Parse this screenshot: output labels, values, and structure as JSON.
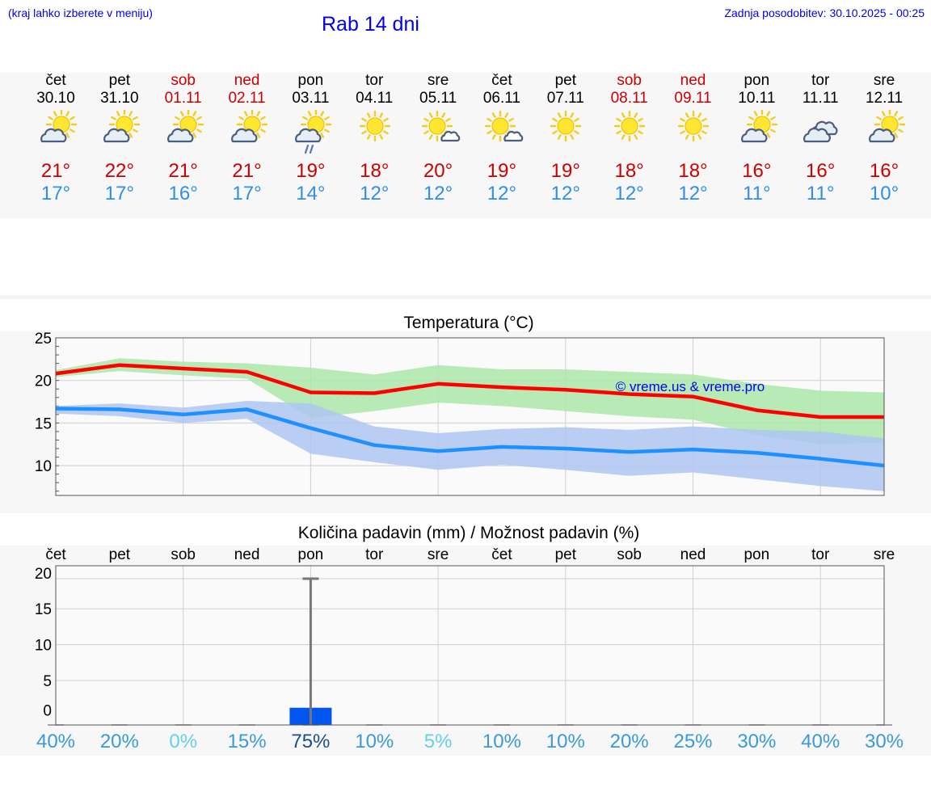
{
  "header": {
    "hint": "(kraj lahko izberete v meniju)",
    "title": "Rab 14 dni",
    "updated": "Zadnja posodobitev: 30.10.2025 - 00:25"
  },
  "colors": {
    "weekend": "#cc0000",
    "tmax": "#cc0000",
    "tmin": "#2f8fe8",
    "max_line": "#ff0000",
    "min_line": "#1e90ff",
    "max_band": "#aae6a8",
    "min_band": "#aec5f2",
    "precip_bar": "#0055ee",
    "error_bar": "#777777"
  },
  "days": [
    {
      "name": "čet",
      "date": "30.10",
      "weekend": false,
      "icon": "partly-cloudy-icon",
      "tmax": "21°",
      "tmin": "17°"
    },
    {
      "name": "pet",
      "date": "31.10",
      "weekend": false,
      "icon": "partly-cloudy-icon",
      "tmax": "22°",
      "tmin": "17°"
    },
    {
      "name": "sob",
      "date": "01.11",
      "weekend": true,
      "icon": "partly-cloudy-icon",
      "tmax": "21°",
      "tmin": "16°"
    },
    {
      "name": "ned",
      "date": "02.11",
      "weekend": true,
      "icon": "partly-cloudy-icon",
      "tmax": "21°",
      "tmin": "17°"
    },
    {
      "name": "pon",
      "date": "03.11",
      "weekend": false,
      "icon": "rain-showers-icon",
      "tmax": "19°",
      "tmin": "14°"
    },
    {
      "name": "tor",
      "date": "04.11",
      "weekend": false,
      "icon": "sunny-icon",
      "tmax": "18°",
      "tmin": "12°"
    },
    {
      "name": "sre",
      "date": "05.11",
      "weekend": false,
      "icon": "mostly-sunny-icon",
      "tmax": "20°",
      "tmin": "12°"
    },
    {
      "name": "čet",
      "date": "06.11",
      "weekend": false,
      "icon": "mostly-sunny-icon",
      "tmax": "19°",
      "tmin": "12°"
    },
    {
      "name": "pet",
      "date": "07.11",
      "weekend": false,
      "icon": "sunny-icon",
      "tmax": "19°",
      "tmin": "12°"
    },
    {
      "name": "sob",
      "date": "08.11",
      "weekend": true,
      "icon": "sunny-icon",
      "tmax": "18°",
      "tmin": "12°"
    },
    {
      "name": "ned",
      "date": "09.11",
      "weekend": true,
      "icon": "sunny-icon",
      "tmax": "18°",
      "tmin": "12°"
    },
    {
      "name": "pon",
      "date": "10.11",
      "weekend": false,
      "icon": "partly-cloudy-icon",
      "tmax": "16°",
      "tmin": "11°"
    },
    {
      "name": "tor",
      "date": "11.11",
      "weekend": false,
      "icon": "cloudy-icon",
      "tmax": "16°",
      "tmin": "11°"
    },
    {
      "name": "sre",
      "date": "12.11",
      "weekend": false,
      "icon": "partly-cloudy-icon",
      "tmax": "16°",
      "tmin": "10°"
    }
  ],
  "chart_data": [
    {
      "type": "line",
      "title": "Temperatura (°C)",
      "ylim": [
        6.5,
        25
      ],
      "yticks": [
        10,
        15,
        20,
        25
      ],
      "watermark": "© vreme.us & vreme.pro",
      "grid": true,
      "series": [
        {
          "name": "max",
          "values": [
            20.8,
            21.8,
            21.4,
            21.0,
            18.6,
            18.5,
            19.6,
            19.2,
            18.9,
            18.4,
            18.1,
            16.5,
            15.7,
            15.7
          ]
        },
        {
          "name": "max_low",
          "values": [
            20.4,
            21.1,
            20.6,
            20.2,
            15.6,
            16.4,
            17.4,
            17.0,
            16.4,
            15.8,
            15.4,
            13.6,
            12.5,
            12.7
          ]
        },
        {
          "name": "max_high",
          "values": [
            21.2,
            22.6,
            22.2,
            22.0,
            21.5,
            20.7,
            21.8,
            21.3,
            21.3,
            21.0,
            20.7,
            19.6,
            18.8,
            18.6
          ]
        },
        {
          "name": "min",
          "values": [
            16.7,
            16.6,
            16.0,
            16.6,
            14.4,
            12.4,
            11.7,
            12.2,
            12.0,
            11.6,
            11.9,
            11.5,
            10.8,
            10.0
          ]
        },
        {
          "name": "min_low",
          "values": [
            16.1,
            15.8,
            15.0,
            15.5,
            11.4,
            10.4,
            9.5,
            10.1,
            9.5,
            8.8,
            9.2,
            8.4,
            7.6,
            7.0
          ]
        },
        {
          "name": "min_high",
          "values": [
            17.0,
            17.3,
            16.8,
            17.6,
            17.3,
            14.6,
            13.8,
            14.3,
            14.5,
            14.2,
            14.6,
            14.2,
            14.0,
            13.2
          ]
        }
      ]
    },
    {
      "type": "bar",
      "title": "Količina padavin (mm) / Možnost padavin (%)",
      "ylim": [
        -1.2,
        21
      ],
      "yticks": [
        0,
        5,
        10,
        15,
        20
      ],
      "categories": [
        "čet",
        "pet",
        "sob",
        "ned",
        "pon",
        "tor",
        "sre",
        "čet",
        "pet",
        "sob",
        "ned",
        "pon",
        "tor",
        "sre"
      ],
      "values": [
        0,
        0,
        0,
        0,
        1.2,
        0,
        0,
        0,
        0,
        0,
        0,
        0,
        0,
        0
      ],
      "error_high": [
        0,
        0,
        0,
        0,
        19.2,
        0,
        0,
        0,
        0,
        0,
        0,
        0,
        0,
        0
      ],
      "chance": [
        "40%",
        "20%",
        "0%",
        "15%",
        "75%",
        "10%",
        "5%",
        "10%",
        "10%",
        "20%",
        "25%",
        "30%",
        "40%",
        "30%"
      ],
      "chance_colors": [
        "#3a9ad8",
        "#3a9ad8",
        "#66d0e8",
        "#3a9ad8",
        "#154f86",
        "#3a9ad8",
        "#66d0e8",
        "#3a9ad8",
        "#3a9ad8",
        "#3a9ad8",
        "#3a9ad8",
        "#3a9ad8",
        "#3a9ad8",
        "#3a9ad8"
      ]
    }
  ]
}
